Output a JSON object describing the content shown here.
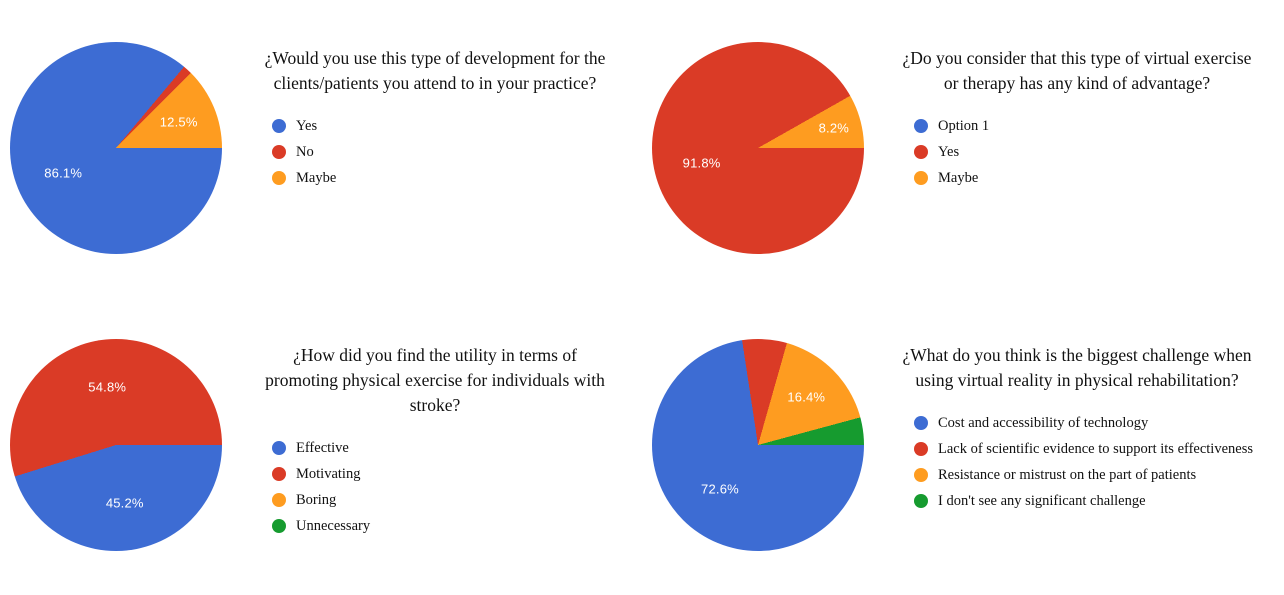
{
  "chart_data": [
    {
      "type": "pie",
      "title": "¿Would you use this type of development for the clients/patients you attend to in your practice?",
      "legend_position": "right",
      "start_angle": "east-clockwise",
      "slices": [
        {
          "label": "Yes",
          "value": 86.1,
          "pct_label": "86.1%",
          "color": "#3d6cd3"
        },
        {
          "label": "No",
          "value": 1.4,
          "pct_label": "",
          "color": "#da3b26"
        },
        {
          "label": "Maybe",
          "value": 12.5,
          "pct_label": "12.5%",
          "color": "#fe9c20"
        }
      ]
    },
    {
      "type": "pie",
      "title": "¿Do you consider that this type of virtual exercise or therapy has any kind of advantage?",
      "legend_position": "right",
      "start_angle": "east-clockwise",
      "slices": [
        {
          "label": "Option 1",
          "value": 0,
          "pct_label": "",
          "color": "#3d6cd3"
        },
        {
          "label": "Yes",
          "value": 91.8,
          "pct_label": "91.8%",
          "color": "#da3b26"
        },
        {
          "label": "Maybe",
          "value": 8.2,
          "pct_label": "8.2%",
          "color": "#fe9c20"
        }
      ]
    },
    {
      "type": "pie",
      "title": "¿How did you find the utility in terms of promoting physical exercise for individuals with stroke?",
      "legend_position": "right",
      "start_angle": "east-clockwise",
      "slices": [
        {
          "label": "Effective",
          "value": 45.2,
          "pct_label": "45.2%",
          "color": "#3d6cd3"
        },
        {
          "label": "Motivating",
          "value": 54.8,
          "pct_label": "54.8%",
          "color": "#da3b26"
        },
        {
          "label": "Boring",
          "value": 0,
          "pct_label": "",
          "color": "#fe9c20"
        },
        {
          "label": "Unnecessary",
          "value": 0,
          "pct_label": "",
          "color": "#169b2f"
        }
      ]
    },
    {
      "type": "pie",
      "title": "¿What do you think is the biggest challenge when using virtual reality in physical rehabilitation?",
      "legend_position": "right",
      "start_angle": "east-clockwise",
      "slices": [
        {
          "label": "Cost and accessibility of technology",
          "value": 72.6,
          "pct_label": "72.6%",
          "color": "#3d6cd3"
        },
        {
          "label": "Lack of scientific evidence to support its effectiveness",
          "value": 6.8,
          "pct_label": "",
          "color": "#da3b26"
        },
        {
          "label": "Resistance or mistrust on the part of patients",
          "value": 16.4,
          "pct_label": "16.4%",
          "color": "#fe9c20"
        },
        {
          "label": "I don't see any significant challenge",
          "value": 4.2,
          "pct_label": "",
          "color": "#169b2f"
        }
      ]
    }
  ]
}
